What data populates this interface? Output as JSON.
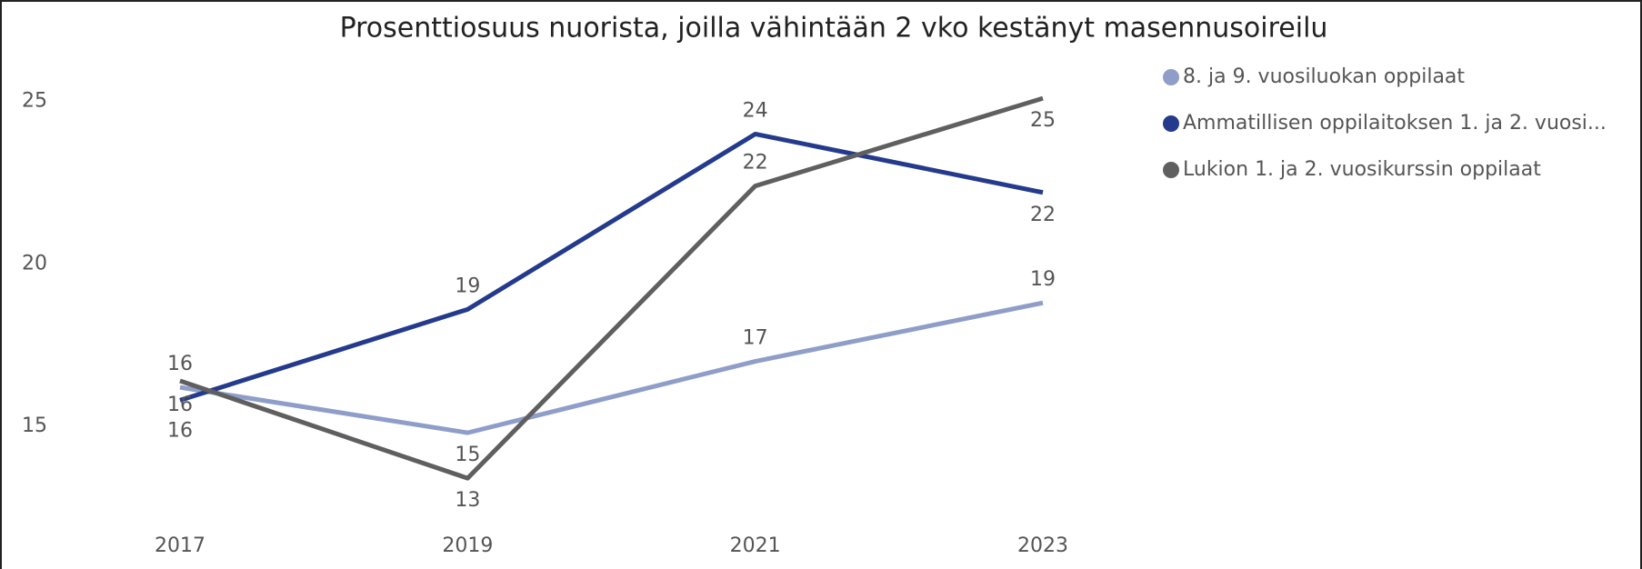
{
  "chart_data": {
    "type": "line",
    "title": "Prosenttiosuus nuorista, joilla vähintään 2 vko kestänyt masennusoireilu",
    "categories": [
      "2017",
      "2019",
      "2021",
      "2023"
    ],
    "series": [
      {
        "name": "8. ja 9. vuosiluokan oppilaat",
        "color": "#8f9dc9",
        "values": [
          16.2,
          14.8,
          17.0,
          18.8
        ],
        "value_labels": [
          "16",
          "15",
          "17",
          "19"
        ]
      },
      {
        "name": "Ammatillisen oppilaitoksen 1. ja 2. vuosi...",
        "color": "#243a8c",
        "values": [
          15.8,
          18.6,
          24.0,
          22.2
        ],
        "value_labels": [
          "16",
          "19",
          "24",
          "22"
        ]
      },
      {
        "name": "Lukion 1. ja 2. vuosikurssin oppilaat",
        "color": "#5f5f5f",
        "values": [
          16.4,
          13.4,
          22.4,
          25.1
        ],
        "value_labels": [
          "16",
          "13",
          "22",
          "25"
        ]
      }
    ],
    "ylim": [
      12.2,
      26
    ],
    "yticks": [
      15,
      20,
      25
    ],
    "grid": false,
    "legend": "right"
  }
}
